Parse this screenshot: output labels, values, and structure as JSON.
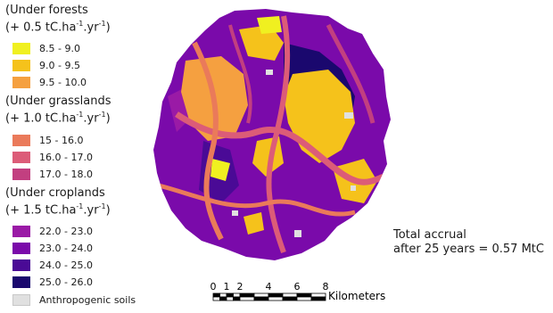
{
  "legend": {
    "groups": [
      {
        "title": "(Under forests",
        "rate_prefix": "(+ 0.5 tC.ha",
        "items": [
          {
            "label": "8.5 - 9.0",
            "color": "#f0f020"
          },
          {
            "label": "9.0 - 9.5",
            "color": "#f5c21b"
          },
          {
            "label": "9.5 - 10.0",
            "color": "#f5a040"
          }
        ]
      },
      {
        "title": "(Under grasslands",
        "rate_prefix": "(+ 1.0 tC.ha",
        "items": [
          {
            "label": "15 - 16.0",
            "color": "#ea7a5a"
          },
          {
            "label": "16.0 - 17.0",
            "color": "#dc5c78"
          },
          {
            "label": "17.0 - 18.0",
            "color": "#c23f80"
          }
        ]
      },
      {
        "title": "(Under croplands",
        "rate_prefix": "(+ 1.5 tC.ha",
        "items": [
          {
            "label": "22.0 - 23.0",
            "color": "#9a1aa6"
          },
          {
            "label": "23.0 - 24.0",
            "color": "#7a0aaa"
          },
          {
            "label": "24.0 - 25.0",
            "color": "#4a0a96"
          },
          {
            "label": "25.0 - 26.0",
            "color": "#1a086e"
          }
        ]
      }
    ],
    "rate_exp1": "-1",
    "rate_mid": ".yr",
    "rate_exp2": "-1",
    "rate_suffix": ")",
    "anthropogenic": {
      "label": "Anthropogenic soils",
      "color": "#e0e0e0"
    }
  },
  "annotation": {
    "line1": "Total accrual",
    "line2": "after 25 years = 0.57 MtC"
  },
  "scalebar": {
    "ticks": [
      "0",
      "1",
      "2",
      "4",
      "6",
      "8"
    ],
    "unit": "Kilometers"
  }
}
